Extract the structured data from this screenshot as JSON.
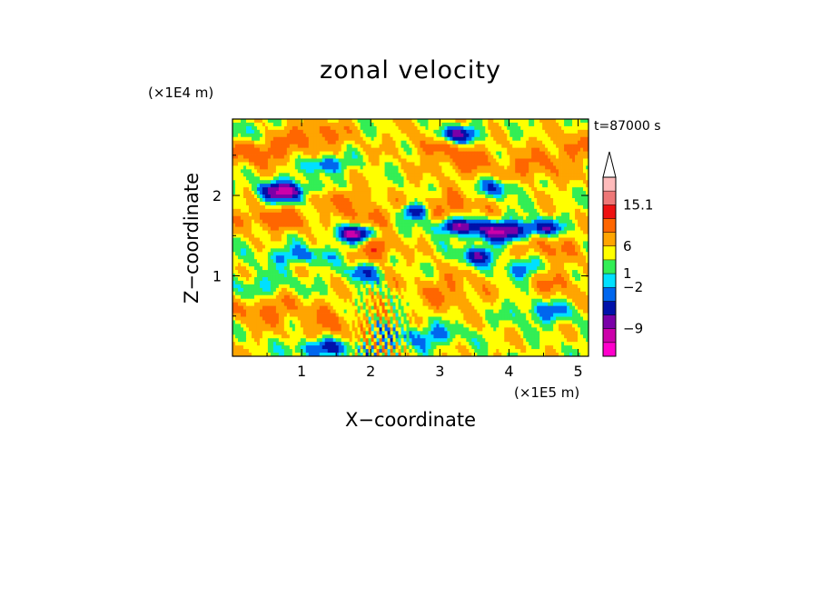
{
  "chart_data": {
    "type": "heatmap",
    "title": "zonal velocity",
    "xlabel": "X−coordinate",
    "ylabel": "Z−coordinate",
    "x_unit": "(×1E5 m)",
    "y_unit": "(×1E4 m)",
    "time_label": "t=87000 s",
    "xlim": [
      0,
      5.15
    ],
    "ylim": [
      0,
      2.95
    ],
    "x_ticks": [
      {
        "value": 1,
        "label": "1"
      },
      {
        "value": 2,
        "label": "2"
      },
      {
        "value": 3,
        "label": "3"
      },
      {
        "value": 4,
        "label": "4"
      },
      {
        "value": 5,
        "label": "5"
      }
    ],
    "y_ticks": [
      {
        "value": 1,
        "label": "1"
      },
      {
        "value": 2,
        "label": "2"
      }
    ],
    "colorbar": {
      "max_label": "15.1",
      "labels": [
        {
          "level_index": 11,
          "label": "15.1"
        },
        {
          "level_index": 8,
          "label": "6"
        },
        {
          "level_index": 6,
          "label": "1"
        },
        {
          "level_index": 5,
          "label": "−2"
        },
        {
          "level_index": 2,
          "label": "−9"
        }
      ],
      "levels": [
        {
          "color": "#ff00cc"
        },
        {
          "color": "#cc00aa"
        },
        {
          "color": "#7a00a8"
        },
        {
          "color": "#0011aa"
        },
        {
          "color": "#0066ee"
        },
        {
          "color": "#00e0ff"
        },
        {
          "color": "#33ee55"
        },
        {
          "color": "#ffff00"
        },
        {
          "color": "#ffa500"
        },
        {
          "color": "#ff6600"
        },
        {
          "color": "#ee1111"
        },
        {
          "color": "#ee7777"
        },
        {
          "color": "#ffbbbb"
        }
      ]
    },
    "field_features": [
      {
        "x": 0.35,
        "z": 2.55,
        "amp": 4.5,
        "sx": 0.35,
        "sz": 0.12
      },
      {
        "x": 1.2,
        "z": 2.75,
        "amp": 4.0,
        "sx": 0.3,
        "sz": 0.12
      },
      {
        "x": 2.9,
        "z": 2.7,
        "amp": 3.5,
        "sx": 0.3,
        "sz": 0.12
      },
      {
        "x": 3.3,
        "z": 2.45,
        "amp": 3.5,
        "sx": 0.3,
        "sz": 0.15
      },
      {
        "x": 4.3,
        "z": 2.35,
        "amp": 3.0,
        "sx": 0.35,
        "sz": 0.14
      },
      {
        "x": 4.9,
        "z": 2.6,
        "amp": 3.0,
        "sx": 0.25,
        "sz": 0.13
      },
      {
        "x": 0.6,
        "z": 1.7,
        "amp": 4.0,
        "sx": 0.4,
        "sz": 0.1
      },
      {
        "x": 1.5,
        "z": 1.95,
        "amp": 3.0,
        "sx": 0.3,
        "sz": 0.1
      },
      {
        "x": 2.1,
        "z": 1.35,
        "amp": 6.0,
        "sx": 0.15,
        "sz": 0.12
      },
      {
        "x": 2.0,
        "z": 1.75,
        "amp": 3.5,
        "sx": 0.2,
        "sz": 0.1
      },
      {
        "x": 3.1,
        "z": 1.85,
        "amp": 3.5,
        "sx": 0.35,
        "sz": 0.12
      },
      {
        "x": 4.5,
        "z": 1.35,
        "amp": 3.0,
        "sx": 0.35,
        "sz": 0.12
      },
      {
        "x": 0.5,
        "z": 0.6,
        "amp": 3.5,
        "sx": 0.4,
        "sz": 0.15
      },
      {
        "x": 1.4,
        "z": 0.4,
        "amp": 3.0,
        "sx": 0.25,
        "sz": 0.15
      },
      {
        "x": 3.1,
        "z": 0.8,
        "amp": 3.0,
        "sx": 0.35,
        "sz": 0.15
      },
      {
        "x": 4.7,
        "z": 0.9,
        "amp": 2.5,
        "sx": 0.3,
        "sz": 0.15
      },
      {
        "x": 0.75,
        "z": 2.05,
        "amp": -10.0,
        "sx": 0.25,
        "sz": 0.09
      },
      {
        "x": 1.35,
        "z": 2.38,
        "amp": -6.0,
        "sx": 0.18,
        "sz": 0.07
      },
      {
        "x": 3.2,
        "z": 2.75,
        "amp": -9.0,
        "sx": 0.25,
        "sz": 0.08
      },
      {
        "x": 3.85,
        "z": 2.1,
        "amp": -5.0,
        "sx": 0.2,
        "sz": 0.08
      },
      {
        "x": 3.25,
        "z": 1.62,
        "amp": -8.0,
        "sx": 0.25,
        "sz": 0.07
      },
      {
        "x": 3.9,
        "z": 1.55,
        "amp": -9.0,
        "sx": 0.3,
        "sz": 0.09
      },
      {
        "x": 4.5,
        "z": 1.6,
        "amp": -6.0,
        "sx": 0.2,
        "sz": 0.07
      },
      {
        "x": 1.8,
        "z": 1.52,
        "amp": -9.0,
        "sx": 0.22,
        "sz": 0.07
      },
      {
        "x": 2.65,
        "z": 1.8,
        "amp": -8.0,
        "sx": 0.15,
        "sz": 0.07
      },
      {
        "x": 3.55,
        "z": 1.25,
        "amp": -7.0,
        "sx": 0.18,
        "sz": 0.08
      },
      {
        "x": 1.9,
        "z": 1.05,
        "amp": -6.0,
        "sx": 0.15,
        "sz": 0.08
      },
      {
        "x": 4.2,
        "z": 1.1,
        "amp": -5.0,
        "sx": 0.18,
        "sz": 0.09
      },
      {
        "x": 0.95,
        "z": 1.25,
        "amp": -4.0,
        "sx": 0.35,
        "sz": 0.08
      },
      {
        "x": 1.3,
        "z": 0.1,
        "amp": -6.0,
        "sx": 0.3,
        "sz": 0.08
      },
      {
        "x": 4.5,
        "z": 0.55,
        "amp": -4.0,
        "sx": 0.3,
        "sz": 0.1
      },
      {
        "x": 0.4,
        "z": 0.85,
        "amp": -3.0,
        "sx": 0.4,
        "sz": 0.12
      },
      {
        "x": 2.8,
        "z": 0.25,
        "amp": -4.0,
        "sx": 0.35,
        "sz": 0.1
      },
      {
        "x": 0.15,
        "z": 2.8,
        "amp": -3.0,
        "sx": 0.2,
        "sz": 0.1
      }
    ]
  }
}
